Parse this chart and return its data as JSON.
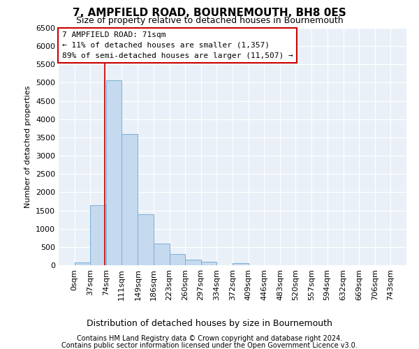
{
  "title": "7, AMPFIELD ROAD, BOURNEMOUTH, BH8 0ES",
  "subtitle": "Size of property relative to detached houses in Bournemouth",
  "xlabel": "Distribution of detached houses by size in Bournemouth",
  "ylabel": "Number of detached properties",
  "footnote1": "Contains HM Land Registry data © Crown copyright and database right 2024.",
  "footnote2": "Contains public sector information licensed under the Open Government Licence v3.0.",
  "annotation_title": "7 AMPFIELD ROAD: 71sqm",
  "annotation_line1": "← 11% of detached houses are smaller (1,357)",
  "annotation_line2": "89% of semi-detached houses are larger (11,507) →",
  "property_size": 71,
  "bin_edges": [
    0,
    37,
    74,
    111,
    149,
    186,
    223,
    260,
    297,
    334,
    372,
    409,
    446,
    483,
    520,
    557,
    594,
    632,
    669,
    706,
    743
  ],
  "bin_counts": [
    75,
    1650,
    5075,
    3600,
    1400,
    600,
    300,
    150,
    100,
    0,
    60,
    0,
    0,
    0,
    0,
    0,
    0,
    0,
    0,
    0
  ],
  "bar_color": "#c5d9ef",
  "bar_edge_color": "#7bafd4",
  "red_line_color": "#cc2222",
  "annotation_box_facecolor": "#ffffff",
  "annotation_box_edgecolor": "#cc0000",
  "figure_facecolor": "#ffffff",
  "axes_facecolor": "#eaf0f8",
  "grid_color": "#ffffff",
  "ylim": [
    0,
    6500
  ],
  "yticks": [
    0,
    500,
    1000,
    1500,
    2000,
    2500,
    3000,
    3500,
    4000,
    4500,
    5000,
    5500,
    6000,
    6500
  ],
  "title_fontsize": 11,
  "subtitle_fontsize": 9,
  "tick_fontsize": 8,
  "ylabel_fontsize": 8,
  "xlabel_fontsize": 9,
  "footnote_fontsize": 7
}
